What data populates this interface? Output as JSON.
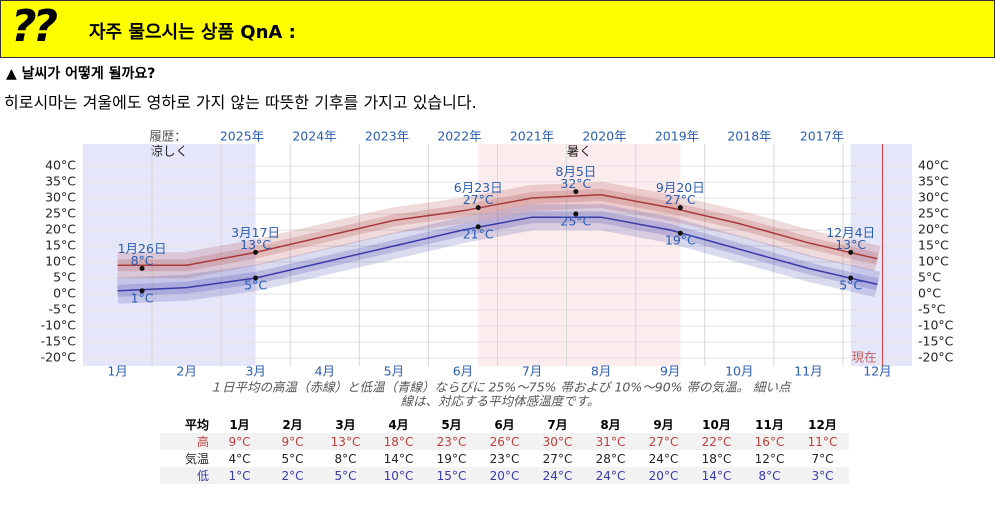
{
  "header": {
    "icon": "??",
    "title": "자주 물으시는 상품 QnA :"
  },
  "question": "▲ 날씨가 어떻게 될까요?",
  "answer": "히로시마는 겨울에도 영하로 가지 않는 따뜻한 기후를 가지고 있습니다.",
  "chart_data": {
    "type": "line",
    "history_label": "履歴：",
    "history": [
      "2025年",
      "2024年",
      "2023年",
      "2022年",
      "2021年",
      "2020年",
      "2019年",
      "2018年",
      "2017年"
    ],
    "categories": [
      "1月",
      "2月",
      "3月",
      "4月",
      "5月",
      "6月",
      "7月",
      "8月",
      "9月",
      "10月",
      "11月",
      "12月"
    ],
    "xlim": [
      0,
      365
    ],
    "ylim": [
      -20,
      40
    ],
    "yticks": [
      {
        "value": -20,
        "label": "-20°C"
      },
      {
        "value": -15,
        "label": "-15°C"
      },
      {
        "value": -10,
        "label": "-10°C"
      },
      {
        "value": -5,
        "label": "-5°C"
      },
      {
        "value": 0,
        "label": "0°C"
      },
      {
        "value": 5,
        "label": "5°C"
      },
      {
        "value": 10,
        "label": "10°C"
      },
      {
        "value": 15,
        "label": "15°C"
      },
      {
        "value": 20,
        "label": "20°C"
      },
      {
        "value": 25,
        "label": "25°C"
      },
      {
        "value": 30,
        "label": "30°C"
      },
      {
        "value": 35,
        "label": "35°C"
      },
      {
        "value": 40,
        "label": "40°C"
      }
    ],
    "grid": true,
    "series": [
      {
        "color": "#a83a3a",
        "values": [
          9,
          9,
          13,
          18,
          23,
          26,
          30,
          31,
          27,
          22,
          16,
          11
        ]
      },
      {
        "color": "#3a3aa8",
        "values": [
          1,
          2,
          5,
          10,
          15,
          20,
          24,
          24,
          20,
          14,
          8,
          3
        ]
      }
    ],
    "seasons": [
      {
        "label": "涼しく",
        "start": 338,
        "end": 76,
        "color": "#e6e6fa"
      },
      {
        "label": "暑く",
        "start": 174,
        "end": 263,
        "color": "#fdeced"
      }
    ],
    "annotations": [
      {
        "label": "1月26日",
        "x": 26,
        "values": [
          8,
          1
        ],
        "value_labels": [
          "8°C",
          "1°C"
        ]
      },
      {
        "label": "3月17日",
        "x": 76,
        "values": [
          13,
          5
        ],
        "value_labels": [
          "13°C",
          "5°C"
        ]
      },
      {
        "label": "6月23日",
        "x": 174,
        "values": [
          27,
          21
        ],
        "value_labels": [
          "27°C",
          "21°C"
        ]
      },
      {
        "label": "8月5日",
        "x": 217,
        "values": [
          32,
          25
        ],
        "value_labels": [
          "32°C",
          "25°C"
        ]
      },
      {
        "label": "9月20日",
        "x": 263,
        "values": [
          27,
          19
        ],
        "value_labels": [
          "27°C",
          "19°C"
        ]
      },
      {
        "label": "12月4日",
        "x": 338,
        "values": [
          13,
          5
        ],
        "value_labels": [
          "13°C",
          "5°C"
        ]
      }
    ],
    "today": {
      "label": "現在",
      "x": 352
    },
    "caption": [
      "１日平均の高温（赤線）と低温（青線）ならびに 25%～75% 帯および 10%～90% 帯の気温。 細い点",
      "線は、対応する平均体感温度です。"
    ]
  },
  "table": {
    "header": [
      "平均",
      "1月",
      "2月",
      "3月",
      "4月",
      "5月",
      "6月",
      "7月",
      "8月",
      "9月",
      "10月",
      "11月",
      "12月"
    ],
    "rows": [
      [
        "高",
        "9°C",
        "9°C",
        "13°C",
        "18°C",
        "23°C",
        "26°C",
        "30°C",
        "31°C",
        "27°C",
        "22°C",
        "16°C",
        "11°C"
      ],
      [
        "気温",
        "4°C",
        "5°C",
        "8°C",
        "14°C",
        "19°C",
        "23°C",
        "27°C",
        "28°C",
        "24°C",
        "18°C",
        "12°C",
        "7°C"
      ],
      [
        "低",
        "1°C",
        "2°C",
        "5°C",
        "10°C",
        "15°C",
        "20°C",
        "24°C",
        "24°C",
        "20°C",
        "14°C",
        "8°C",
        "3°C"
      ]
    ]
  }
}
